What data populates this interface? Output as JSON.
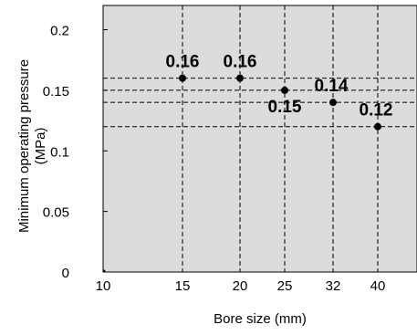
{
  "chart_data": {
    "type": "scatter",
    "title": "",
    "xlabel": "Bore size (mm)",
    "ylabel_line1": "Minimum operating pressure",
    "ylabel_line2": "(MPa)",
    "x_tick_labels": [
      "10",
      "15",
      "20",
      "25",
      "32",
      "40"
    ],
    "y_tick_labels": [
      "0",
      "0.05",
      "0.1",
      "0.15",
      "0.2"
    ],
    "y_ticks": [
      0,
      0.05,
      0.1,
      0.15,
      0.2
    ],
    "ylim": [
      0,
      0.22
    ],
    "grid": "dashed reference lines at each data point",
    "series": [
      {
        "x": [
          "15",
          "20",
          "25",
          "32",
          "40"
        ],
        "y": [
          0.16,
          0.16,
          0.15,
          0.14,
          0.12
        ],
        "labels": [
          "0.16",
          "0.16",
          "0.15",
          "0.14",
          "0.12"
        ]
      }
    ],
    "colors": {
      "plot_background": "#dcdcdc",
      "points": "#000000",
      "grid": "#000000"
    }
  }
}
